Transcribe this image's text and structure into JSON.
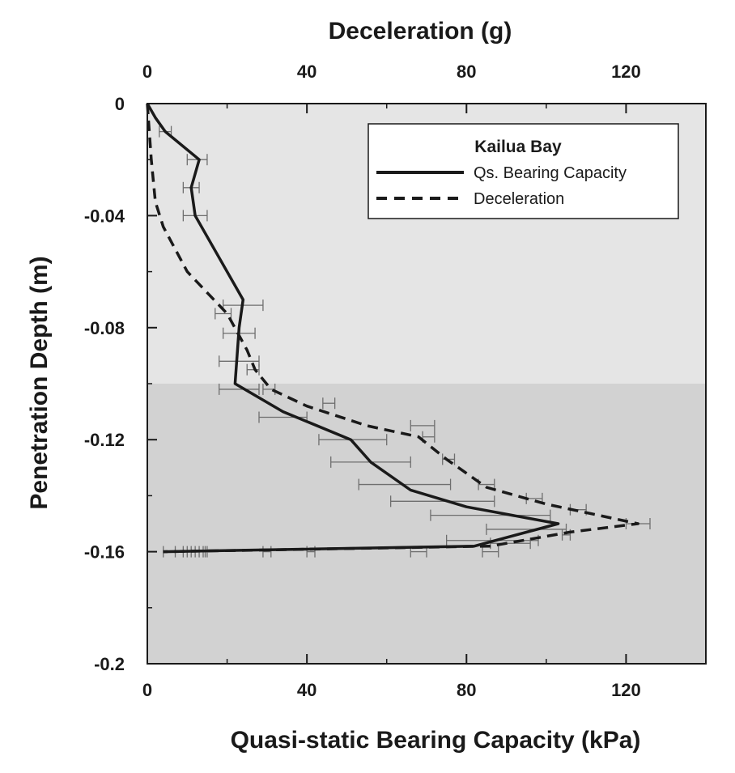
{
  "chart_data": {
    "type": "line",
    "top_axis": {
      "label": "Deceleration (g)",
      "range": [
        0,
        140
      ],
      "ticks": [
        0,
        40,
        80,
        120
      ],
      "tick_labels": [
        "0",
        "40",
        "80",
        "120"
      ]
    },
    "bottom_axis": {
      "label": "Quasi-static Bearing Capacity (kPa)",
      "range": [
        0,
        140
      ],
      "ticks": [
        0,
        40,
        80,
        120
      ],
      "tick_labels": [
        "0",
        "40",
        "80",
        "120"
      ]
    },
    "y_axis": {
      "label": "Penetration Depth (m)",
      "range": [
        -0.2,
        0
      ],
      "ticks": [
        0,
        -0.04,
        -0.08,
        -0.12,
        -0.16,
        -0.2
      ],
      "tick_labels": [
        "0",
        "-0.04",
        "-0.08",
        "-0.12",
        "-0.16",
        "-0.2"
      ]
    },
    "background_bands": [
      {
        "from": 0,
        "to": -0.1,
        "color": "#e5e5e5"
      },
      {
        "from": -0.1,
        "to": -0.2,
        "color": "#d2d2d2"
      }
    ],
    "legend": {
      "title": "Kailua Bay",
      "placement": "top-right",
      "entries": [
        "Qs. Bearing Capacity",
        "Deceleration"
      ]
    },
    "series": [
      {
        "name": "Qs. Bearing Capacity",
        "axis": "bottom",
        "style": "solid",
        "points": [
          [
            0,
            0
          ],
          [
            2,
            -0.005
          ],
          [
            4.5,
            -0.01
          ],
          [
            13,
            -0.02
          ],
          [
            11,
            -0.03
          ],
          [
            12,
            -0.04
          ],
          [
            24,
            -0.07
          ],
          [
            23,
            -0.08
          ],
          [
            22,
            -0.1
          ],
          [
            34,
            -0.11
          ],
          [
            51,
            -0.12
          ],
          [
            56,
            -0.128
          ],
          [
            66,
            -0.138
          ],
          [
            80,
            -0.144
          ],
          [
            103,
            -0.15
          ],
          [
            82,
            -0.158
          ],
          [
            4,
            -0.16
          ]
        ],
        "error_bars": [
          {
            "y": -0.01,
            "lo": 3,
            "hi": 6
          },
          {
            "y": -0.02,
            "lo": 10,
            "hi": 15
          },
          {
            "y": -0.03,
            "lo": 9,
            "hi": 13
          },
          {
            "y": -0.04,
            "lo": 9,
            "hi": 15
          },
          {
            "y": -0.072,
            "lo": 19,
            "hi": 29
          },
          {
            "y": -0.082,
            "lo": 19,
            "hi": 27
          },
          {
            "y": -0.092,
            "lo": 18,
            "hi": 28
          },
          {
            "y": -0.102,
            "lo": 18,
            "hi": 28
          },
          {
            "y": -0.112,
            "lo": 28,
            "hi": 40
          },
          {
            "y": -0.12,
            "lo": 43,
            "hi": 60
          },
          {
            "y": -0.128,
            "lo": 46,
            "hi": 66
          },
          {
            "y": -0.136,
            "lo": 53,
            "hi": 76
          },
          {
            "y": -0.142,
            "lo": 61,
            "hi": 87
          },
          {
            "y": -0.147,
            "lo": 71,
            "hi": 101
          },
          {
            "y": -0.152,
            "lo": 85,
            "hi": 105
          },
          {
            "y": -0.156,
            "lo": 75,
            "hi": 98
          }
        ]
      },
      {
        "name": "Deceleration",
        "axis": "top",
        "style": "dashed",
        "points": [
          [
            0,
            0
          ],
          [
            1,
            -0.02
          ],
          [
            2,
            -0.035
          ],
          [
            4,
            -0.044
          ],
          [
            10,
            -0.06
          ],
          [
            20,
            -0.075
          ],
          [
            25,
            -0.088
          ],
          [
            27,
            -0.095
          ],
          [
            31,
            -0.102
          ],
          [
            40,
            -0.108
          ],
          [
            55,
            -0.115
          ],
          [
            68,
            -0.119
          ],
          [
            75,
            -0.127
          ],
          [
            85,
            -0.137
          ],
          [
            100,
            -0.143
          ],
          [
            123,
            -0.15
          ],
          [
            106,
            -0.153
          ],
          [
            86,
            -0.158
          ],
          [
            4,
            -0.16
          ]
        ],
        "error_bars": [
          {
            "y": -0.075,
            "lo": 17,
            "hi": 21
          },
          {
            "y": -0.095,
            "lo": 25,
            "hi": 28
          },
          {
            "y": -0.102,
            "lo": 29,
            "hi": 32
          },
          {
            "y": -0.107,
            "lo": 44,
            "hi": 47
          },
          {
            "y": -0.115,
            "lo": 66,
            "hi": 72
          },
          {
            "y": -0.119,
            "lo": 69,
            "hi": 72
          },
          {
            "y": -0.127,
            "lo": 74,
            "hi": 77
          },
          {
            "y": -0.136,
            "lo": 83,
            "hi": 87
          },
          {
            "y": -0.141,
            "lo": 95,
            "hi": 99
          },
          {
            "y": -0.145,
            "lo": 106,
            "hi": 110
          },
          {
            "y": -0.15,
            "lo": 120,
            "hi": 126
          },
          {
            "y": -0.154,
            "lo": 104,
            "hi": 106
          },
          {
            "y": -0.157,
            "lo": 86,
            "hi": 96
          }
        ]
      }
    ],
    "bottom_cluster_bars": {
      "y": -0.16,
      "bars": [
        [
          4,
          12
        ],
        [
          7,
          13
        ],
        [
          9,
          14
        ],
        [
          10,
          14.5
        ],
        [
          11,
          15
        ],
        [
          29,
          31
        ],
        [
          40,
          42
        ],
        [
          66,
          70
        ],
        [
          84,
          88
        ]
      ]
    }
  }
}
